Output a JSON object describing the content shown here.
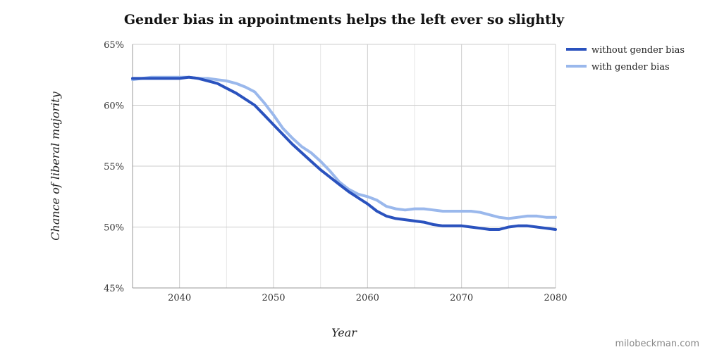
{
  "chart_data": {
    "type": "line",
    "title": "Gender bias in appointments helps the left ever so slightly",
    "xlabel": "Year",
    "ylabel": "Chance of liberal majority",
    "xlim": [
      2035,
      2080
    ],
    "ylim": [
      45,
      65
    ],
    "x_ticks": [
      2040,
      2050,
      2060,
      2070,
      2080
    ],
    "x_tick_labels": [
      "2040",
      "2050",
      "2060",
      "2070",
      "2080"
    ],
    "y_ticks": [
      45,
      50,
      55,
      60,
      65
    ],
    "y_tick_labels": [
      "45%",
      "50%",
      "55%",
      "60%",
      "65%"
    ],
    "x_minor_grid_step": 5,
    "legend_position": "right",
    "grid": true,
    "x": [
      2035,
      2036,
      2037,
      2038,
      2039,
      2040,
      2041,
      2042,
      2043,
      2044,
      2045,
      2046,
      2047,
      2048,
      2049,
      2050,
      2051,
      2052,
      2053,
      2054,
      2055,
      2056,
      2057,
      2058,
      2059,
      2060,
      2061,
      2062,
      2063,
      2064,
      2065,
      2066,
      2067,
      2068,
      2069,
      2070,
      2071,
      2072,
      2073,
      2074,
      2075,
      2076,
      2077,
      2078,
      2079,
      2080
    ],
    "series": [
      {
        "name": "without gender bias",
        "color": "#2a52be",
        "values": [
          62.2,
          62.2,
          62.2,
          62.2,
          62.2,
          62.2,
          62.3,
          62.2,
          62.0,
          61.8,
          61.4,
          61.0,
          60.5,
          60.0,
          59.2,
          58.4,
          57.6,
          56.8,
          56.1,
          55.4,
          54.7,
          54.1,
          53.5,
          52.9,
          52.4,
          51.9,
          51.3,
          50.9,
          50.7,
          50.6,
          50.5,
          50.4,
          50.2,
          50.1,
          50.1,
          50.1,
          50.0,
          49.9,
          49.8,
          49.8,
          50.0,
          50.1,
          50.1,
          50.0,
          49.9,
          49.8
        ]
      },
      {
        "name": "with gender bias",
        "color": "#9ab8ec",
        "values": [
          62.1,
          62.2,
          62.3,
          62.3,
          62.3,
          62.3,
          62.3,
          62.2,
          62.2,
          62.1,
          62.0,
          61.8,
          61.5,
          61.1,
          60.2,
          59.2,
          58.1,
          57.3,
          56.6,
          56.1,
          55.4,
          54.6,
          53.7,
          53.1,
          52.7,
          52.5,
          52.2,
          51.7,
          51.5,
          51.4,
          51.5,
          51.5,
          51.4,
          51.3,
          51.3,
          51.3,
          51.3,
          51.2,
          51.0,
          50.8,
          50.7,
          50.8,
          50.9,
          50.9,
          50.8,
          50.8
        ]
      }
    ]
  },
  "watermark": "milobeckman.com",
  "colors": {
    "grid": "#cccccc",
    "minor_grid": "#e6e6e6",
    "axis": "#999999"
  }
}
